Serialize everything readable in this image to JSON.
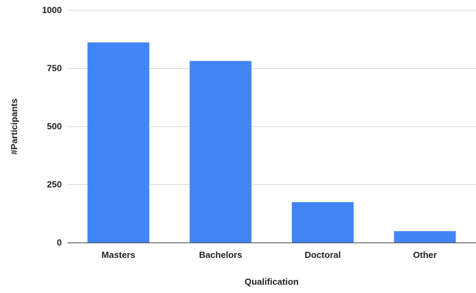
{
  "chart_data": {
    "type": "bar",
    "title": "",
    "xlabel": "Qualification",
    "ylabel": "#Participants",
    "categories": [
      "Masters",
      "Bachelors",
      "Doctoral",
      "Other"
    ],
    "series": [
      {
        "values": [
          862,
          782,
          175,
          50
        ]
      }
    ],
    "ylim": [
      0,
      1000
    ],
    "yticks": [
      0,
      250,
      500,
      750,
      1000
    ],
    "grid": true,
    "legend": "none",
    "bar_color": "#4285f4",
    "grid_color": "#d9d9d9",
    "axis_color": "#333333"
  }
}
